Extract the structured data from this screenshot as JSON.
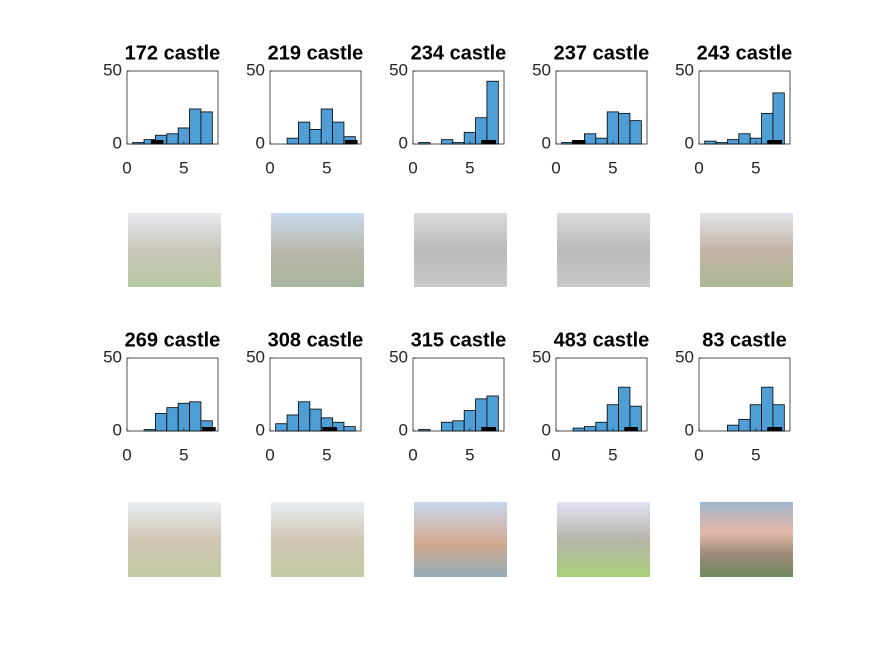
{
  "chart_data": [
    {
      "type": "histogram",
      "title": "172 castle",
      "bins": [
        0.5,
        1.5,
        2.5,
        3.5,
        4.5,
        5.5,
        6.5,
        7.5
      ],
      "values": [
        1,
        3,
        6,
        7,
        11,
        24,
        22
      ],
      "range": [
        2.1,
        3.2
      ],
      "color": "#4f9fd6",
      "xlim": [
        0,
        8
      ],
      "ylim": [
        0,
        50
      ],
      "xticks": [
        0,
        5
      ],
      "yticks": [
        0,
        50
      ]
    },
    {
      "type": "histogram",
      "title": "219 castle",
      "bins": [
        0.5,
        1.5,
        2.5,
        3.5,
        4.5,
        5.5,
        6.5,
        7.5
      ],
      "values": [
        0,
        4,
        15,
        10,
        24,
        15,
        5
      ],
      "range": [
        6.6,
        7.7
      ],
      "color": "#4f9fd6",
      "xlim": [
        0,
        8
      ],
      "ylim": [
        0,
        50
      ],
      "xticks": [
        0,
        5
      ],
      "yticks": [
        0,
        50
      ]
    },
    {
      "type": "histogram",
      "title": "234 castle",
      "bins": [
        0.5,
        1.5,
        2.5,
        3.5,
        4.5,
        5.5,
        6.5,
        7.5
      ],
      "values": [
        1,
        0,
        3,
        1,
        8,
        18,
        43
      ],
      "range": [
        6,
        7.3
      ],
      "color": "#4f9fd6",
      "xlim": [
        0,
        8
      ],
      "ylim": [
        0,
        50
      ],
      "xticks": [
        0,
        5
      ],
      "yticks": [
        0,
        50
      ]
    },
    {
      "type": "histogram",
      "title": "237 castle",
      "bins": [
        0.5,
        1.5,
        2.5,
        3.5,
        4.5,
        5.5,
        6.5,
        7.5
      ],
      "values": [
        1,
        2,
        7,
        4,
        22,
        21,
        16
      ],
      "range": [
        1.4,
        2.6
      ],
      "color": "#4f9fd6",
      "xlim": [
        0,
        8
      ],
      "ylim": [
        0,
        50
      ],
      "xticks": [
        0,
        5
      ],
      "yticks": [
        0,
        50
      ]
    },
    {
      "type": "histogram",
      "title": "243 castle",
      "bins": [
        0.5,
        1.5,
        2.5,
        3.5,
        4.5,
        5.5,
        6.5,
        7.5
      ],
      "values": [
        2,
        1,
        3,
        7,
        4,
        21,
        35
      ],
      "range": [
        6,
        7.3
      ],
      "color": "#4f9fd6",
      "xlim": [
        0,
        8
      ],
      "ylim": [
        0,
        50
      ],
      "xticks": [
        0,
        5
      ],
      "yticks": [
        0,
        50
      ]
    },
    {
      "type": "histogram",
      "title": "269 castle",
      "bins": [
        0.5,
        1.5,
        2.5,
        3.5,
        4.5,
        5.5,
        6.5,
        7.5
      ],
      "values": [
        0,
        1,
        12,
        16,
        19,
        20,
        7
      ],
      "range": [
        6.6,
        7.8
      ],
      "color": "#4f9fd6",
      "xlim": [
        0,
        8
      ],
      "ylim": [
        0,
        50
      ],
      "xticks": [
        0,
        5
      ],
      "yticks": [
        0,
        50
      ]
    },
    {
      "type": "histogram",
      "title": "308 castle",
      "bins": [
        0.5,
        1.5,
        2.5,
        3.5,
        4.5,
        5.5,
        6.5,
        7.5
      ],
      "values": [
        5,
        11,
        20,
        15,
        9,
        6,
        3
      ],
      "range": [
        4.6,
        5.9
      ],
      "color": "#4f9fd6",
      "xlim": [
        0,
        8
      ],
      "ylim": [
        0,
        50
      ],
      "xticks": [
        0,
        5
      ],
      "yticks": [
        0,
        50
      ]
    },
    {
      "type": "histogram",
      "title": "315 castle",
      "bins": [
        0.5,
        1.5,
        2.5,
        3.5,
        4.5,
        5.5,
        6.5,
        7.5
      ],
      "values": [
        1,
        0,
        6,
        7,
        14,
        22,
        24
      ],
      "range": [
        6,
        7.3
      ],
      "color": "#4f9fd6",
      "xlim": [
        0,
        8
      ],
      "ylim": [
        0,
        50
      ],
      "xticks": [
        0,
        5
      ],
      "yticks": [
        0,
        50
      ]
    },
    {
      "type": "histogram",
      "title": "483 castle",
      "bins": [
        0.5,
        1.5,
        2.5,
        3.5,
        4.5,
        5.5,
        6.5,
        7.5
      ],
      "values": [
        0,
        2,
        3,
        6,
        18,
        30,
        17
      ],
      "range": [
        6,
        7.2
      ],
      "color": "#4f9fd6",
      "xlim": [
        0,
        8
      ],
      "ylim": [
        0,
        50
      ],
      "xticks": [
        0,
        5
      ],
      "yticks": [
        0,
        50
      ]
    },
    {
      "type": "histogram",
      "title": "83 castle",
      "bins": [
        0.5,
        1.5,
        2.5,
        3.5,
        4.5,
        5.5,
        6.5,
        7.5
      ],
      "values": [
        0,
        0,
        4,
        8,
        18,
        30,
        18
      ],
      "range": [
        6,
        7.3
      ],
      "color": "#4f9fd6",
      "xlim": [
        0,
        8
      ],
      "ylim": [
        0,
        50
      ],
      "xticks": [
        0,
        5
      ],
      "yticks": [
        0,
        50
      ]
    }
  ]
}
